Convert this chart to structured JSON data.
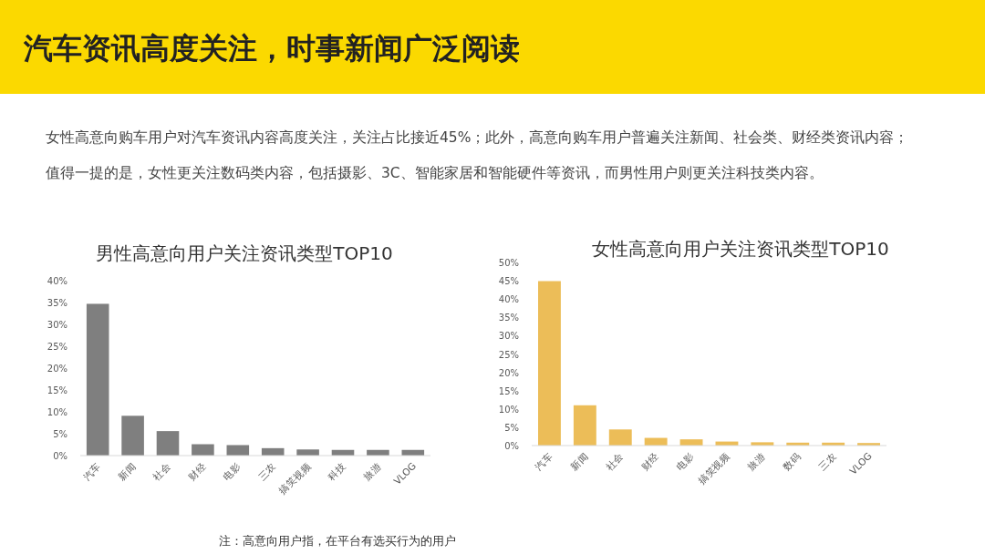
{
  "chart_data": [
    {
      "type": "other",
      "title": "汽车资讯高度关注，时事新闻广泛阅读",
      "annotations": [
        "女性高意向购车用户对汽车资讯内容高度关注，关注占比接近45%；此外，高意向购车用户普遍关注新闻、社会类、财经类资讯内容；",
        "值得一提的是，女性更关注数码类内容，包括摄影、3C、智能家居和智能硬件等资讯，而男性用户则更关注科技类内容。",
        "注：高意向用户指，在平台有选买行为的用户"
      ]
    },
    {
      "type": "bar",
      "title": "男性高意向用户关注资讯类型TOP10",
      "categories": [
        "汽车",
        "新闻",
        "社会",
        "财经",
        "电影",
        "三农",
        "搞笑视频",
        "科技",
        "旅游",
        "VLOG"
      ],
      "values": [
        34.7,
        9.1,
        5.6,
        2.6,
        2.4,
        1.7,
        1.4,
        1.3,
        1.3,
        1.3
      ],
      "color": "#7f7f7f",
      "ylim": [
        0,
        40
      ],
      "yticks": [
        {
          "value": 0,
          "label": "0%"
        },
        {
          "value": 5,
          "label": "5%"
        },
        {
          "value": 10,
          "label": "10%"
        },
        {
          "value": 15,
          "label": "15%"
        },
        {
          "value": 20,
          "label": "20%"
        },
        {
          "value": 25,
          "label": "25%"
        },
        {
          "value": 30,
          "label": "30%"
        },
        {
          "value": 35,
          "label": "35%"
        },
        {
          "value": 40,
          "label": "40%"
        }
      ]
    },
    {
      "type": "bar",
      "title": "女性高意向用户关注资讯类型TOP10",
      "categories": [
        "汽车",
        "新闻",
        "社会",
        "财经",
        "电影",
        "搞笑视频",
        "旅游",
        "数码",
        "三农",
        "VLOG"
      ],
      "values": [
        44.9,
        11.0,
        4.4,
        2.1,
        1.7,
        1.1,
        0.9,
        0.8,
        0.8,
        0.7
      ],
      "color": "#ecbd58",
      "ylim": [
        0,
        50
      ],
      "yticks": [
        {
          "value": 0,
          "label": "0%"
        },
        {
          "value": 5,
          "label": "5%"
        },
        {
          "value": 10,
          "label": "10%"
        },
        {
          "value": 15,
          "label": "15%"
        },
        {
          "value": 20,
          "label": "20%"
        },
        {
          "value": 25,
          "label": "25%"
        },
        {
          "value": 30,
          "label": "30%"
        },
        {
          "value": 35,
          "label": "35%"
        },
        {
          "value": 40,
          "label": "40%"
        },
        {
          "value": 45,
          "label": "45%"
        },
        {
          "value": 50,
          "label": "50%"
        }
      ]
    }
  ]
}
